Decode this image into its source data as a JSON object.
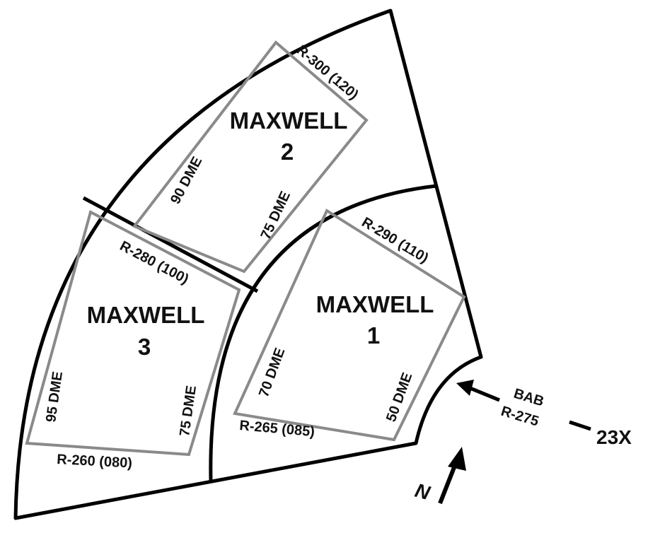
{
  "areas": [
    {
      "name": "MAXWELL",
      "number": "1"
    },
    {
      "name": "MAXWELL",
      "number": "2"
    },
    {
      "name": "MAXWELL",
      "number": "3"
    }
  ],
  "radial_labels": {
    "r260": "R-260 (080)",
    "r265": "R-265 (085)",
    "r280": "R-280 (100)",
    "r290": "R-290 (110)",
    "r300": "R-300 (120)"
  },
  "dme_labels": {
    "dme50": "50 DME",
    "dme70": "70 DME",
    "dme75_area2": "75 DME",
    "dme90": "90 DME",
    "dme95": "95 DME",
    "dme75_area3": "75 DME"
  },
  "navaid": {
    "line1": "BAB",
    "line2": "R-275",
    "id": "23X"
  },
  "north_label": "N",
  "colors": {
    "outline": "#000000",
    "area_box": "#888888",
    "text": "#111111"
  }
}
